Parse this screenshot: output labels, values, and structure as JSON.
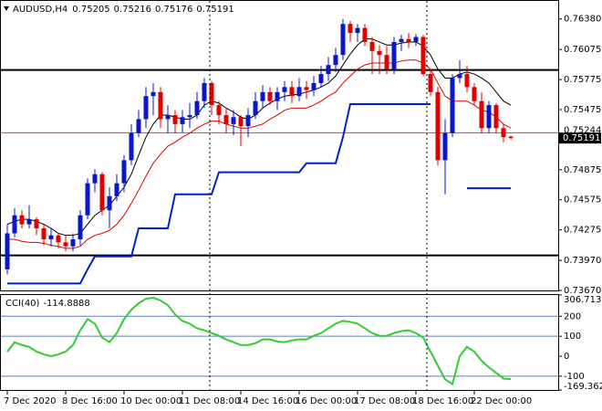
{
  "chart_data": {
    "type": "candlestick",
    "symbol": "AUDUSD,H4",
    "up_color": "#0a17c9",
    "down_color": "#e00000",
    "categories": [
      "7 Dec 2020",
      null,
      null,
      null,
      null,
      null,
      null,
      null,
      "8 Dec 16:00",
      null,
      null,
      null,
      null,
      null,
      null,
      null,
      "10 Dec 00:00",
      null,
      null,
      null,
      null,
      null,
      null,
      null,
      "11 Dec 08:00",
      null,
      null,
      null,
      null,
      null,
      null,
      null,
      "14 Dec 16:00",
      null,
      null,
      null,
      null,
      null,
      null,
      null,
      "16 Dec 00:00",
      null,
      null,
      null,
      null,
      null,
      null,
      null,
      "17 Dec 08:00",
      null,
      null,
      null,
      null,
      null,
      null,
      null,
      "18 Dec 16:00",
      null,
      null,
      null,
      null,
      null,
      null,
      null,
      "22 Dec 00:00",
      null,
      null,
      null,
      null,
      null
    ],
    "open": [
      0.7388,
      0.7424,
      0.7442,
      0.7433,
      0.7438,
      0.7429,
      0.7418,
      0.7422,
      0.7415,
      0.7411,
      0.7418,
      0.7442,
      0.7474,
      0.7483,
      0.7447,
      0.7461,
      0.7474,
      0.7497,
      0.7524,
      0.7538,
      0.7561,
      0.7565,
      0.7538,
      0.7542,
      0.7533,
      0.754,
      0.7542,
      0.7556,
      0.7574,
      0.7552,
      0.7542,
      0.7533,
      0.754,
      0.7531,
      0.7542,
      0.7556,
      0.7565,
      0.7556,
      0.7565,
      0.757,
      0.7561,
      0.757,
      0.7567,
      0.7574,
      0.7583,
      0.7592,
      0.7602,
      0.7633,
      0.7624,
      0.7629,
      0.7615,
      0.7606,
      0.7602,
      0.7588,
      0.7615,
      0.7618,
      0.7615,
      0.762,
      0.7583,
      0.7565,
      0.7497,
      0.7524,
      0.7579,
      0.7583,
      0.757,
      0.7556,
      0.7529,
      0.7552,
      0.7529,
      0.75205
    ],
    "high": [
      0.7433,
      0.7449,
      0.7447,
      0.7452,
      0.744,
      0.7433,
      0.7429,
      0.7424,
      0.7422,
      0.7424,
      0.7447,
      0.7479,
      0.7488,
      0.7485,
      0.747,
      0.7483,
      0.7502,
      0.7533,
      0.7547,
      0.757,
      0.7574,
      0.757,
      0.7552,
      0.7547,
      0.7547,
      0.7554,
      0.7565,
      0.7579,
      0.7576,
      0.7556,
      0.7549,
      0.7547,
      0.7542,
      0.7549,
      0.7565,
      0.7572,
      0.757,
      0.757,
      0.7576,
      0.7576,
      0.7579,
      0.7576,
      0.7581,
      0.7591,
      0.76,
      0.7609,
      0.7638,
      0.7636,
      0.7633,
      0.7633,
      0.762,
      0.7612,
      0.7611,
      0.762,
      0.7622,
      0.7624,
      0.7623,
      0.7622,
      0.7588,
      0.757,
      0.7538,
      0.7583,
      0.7597,
      0.7591,
      0.7574,
      0.7565,
      0.7556,
      0.7554,
      0.7533,
      0.75216
    ],
    "low": [
      0.7383,
      0.742,
      0.7429,
      0.7429,
      0.7422,
      0.7412,
      0.7411,
      0.7409,
      0.7406,
      0.7406,
      0.7412,
      0.7438,
      0.7465,
      0.7442,
      0.7429,
      0.7456,
      0.7465,
      0.7492,
      0.752,
      0.7529,
      0.7542,
      0.7529,
      0.7524,
      0.7524,
      0.7524,
      0.7529,
      0.7538,
      0.7549,
      0.7542,
      0.7533,
      0.7524,
      0.7522,
      0.7511,
      0.752,
      0.7538,
      0.7549,
      0.7552,
      0.7547,
      0.7556,
      0.7554,
      0.7556,
      0.7558,
      0.7561,
      0.757,
      0.7576,
      0.7585,
      0.7597,
      0.7615,
      0.7615,
      0.7611,
      0.7583,
      0.7583,
      0.7583,
      0.7583,
      0.7606,
      0.7609,
      0.7611,
      0.7581,
      0.7561,
      0.7492,
      0.7463,
      0.752,
      0.7574,
      0.7565,
      0.7552,
      0.7524,
      0.7524,
      0.7524,
      0.7515,
      0.75176
    ],
    "close": [
      0.7424,
      0.7442,
      0.7433,
      0.7438,
      0.7429,
      0.7418,
      0.7422,
      0.7415,
      0.7411,
      0.7418,
      0.7442,
      0.7474,
      0.7483,
      0.7447,
      0.7461,
      0.7474,
      0.7497,
      0.7524,
      0.7538,
      0.7561,
      0.7565,
      0.7538,
      0.7542,
      0.7533,
      0.754,
      0.7542,
      0.7556,
      0.7574,
      0.7552,
      0.7542,
      0.7533,
      0.754,
      0.7531,
      0.7542,
      0.7556,
      0.7565,
      0.7556,
      0.7565,
      0.757,
      0.7561,
      0.757,
      0.7567,
      0.7574,
      0.7583,
      0.7592,
      0.7602,
      0.7633,
      0.7624,
      0.7629,
      0.7615,
      0.7606,
      0.7602,
      0.7588,
      0.7615,
      0.7618,
      0.7615,
      0.762,
      0.7583,
      0.7565,
      0.7497,
      0.7524,
      0.7579,
      0.7583,
      0.757,
      0.7556,
      0.7529,
      0.7552,
      0.7529,
      0.752,
      0.75191
    ],
    "overlays": [
      {
        "color": "#000000",
        "values": [
          0.7433,
          0.7436,
          0.7438,
          0.7438,
          0.7436,
          0.7433,
          0.7429,
          0.7424,
          0.7422,
          0.7422,
          0.7424,
          0.7433,
          0.7442,
          0.7447,
          0.7452,
          0.7461,
          0.747,
          0.7483,
          0.7502,
          0.752,
          0.7533,
          0.7542,
          0.7542,
          0.754,
          0.7538,
          0.7538,
          0.7542,
          0.7552,
          0.7556,
          0.7554,
          0.7549,
          0.7545,
          0.754,
          0.7538,
          0.7542,
          0.7549,
          0.7554,
          0.7558,
          0.7561,
          0.7562,
          0.7563,
          0.7565,
          0.7567,
          0.757,
          0.7574,
          0.7581,
          0.7592,
          0.7603,
          0.7612,
          0.7618,
          0.7618,
          0.7615,
          0.7612,
          0.7612,
          0.7614,
          0.7615,
          0.7615,
          0.7611,
          0.7602,
          0.7588,
          0.7579,
          0.7579,
          0.7583,
          0.7585,
          0.7583,
          0.7579,
          0.7574,
          0.7565,
          0.7556,
          0.7552
        ]
      },
      {
        "color": "#e00000",
        "values": [
          0.7418,
          0.7418,
          0.7416,
          0.7415,
          0.7415,
          0.7414,
          0.7412,
          0.7411,
          0.7409,
          0.7409,
          0.7411,
          0.7418,
          0.7422,
          0.7424,
          0.7427,
          0.7433,
          0.7442,
          0.7454,
          0.7467,
          0.7481,
          0.7494,
          0.7503,
          0.7511,
          0.7515,
          0.752,
          0.7524,
          0.7529,
          0.7533,
          0.7536,
          0.7536,
          0.7533,
          0.7531,
          0.7529,
          0.7529,
          0.7531,
          0.7533,
          0.7538,
          0.7542,
          0.7547,
          0.7549,
          0.7549,
          0.7549,
          0.7552,
          0.7556,
          0.7561,
          0.7565,
          0.7574,
          0.7581,
          0.7588,
          0.7592,
          0.7594,
          0.7594,
          0.7594,
          0.7594,
          0.7596,
          0.7597,
          0.7597,
          0.7594,
          0.7588,
          0.7574,
          0.7561,
          0.7556,
          0.7556,
          0.7556,
          0.7552,
          0.7547,
          0.7545,
          0.754,
          0.7533,
          0.7529
        ]
      },
      {
        "color": "#0022cc",
        "values": [
          0.7374,
          0.7374,
          0.7374,
          0.7374,
          0.7374,
          0.7374,
          0.7374,
          0.7374,
          0.7374,
          0.7374,
          0.7374,
          0.7388,
          0.7401,
          0.7401,
          0.7401,
          0.7401,
          0.7401,
          0.7401,
          0.7429,
          0.7429,
          0.7429,
          0.7429,
          0.7429,
          0.7463,
          0.7463,
          0.7463,
          0.7463,
          0.7463,
          0.7463,
          0.7485,
          0.7485,
          0.7485,
          0.7485,
          0.7485,
          0.7485,
          0.7485,
          0.7485,
          0.7485,
          0.7485,
          0.7485,
          0.7485,
          0.7494,
          0.7494,
          0.7494,
          0.7494,
          0.7494,
          0.752,
          0.7553,
          0.7553,
          0.7553,
          0.7553,
          0.7553,
          0.7553,
          0.7553,
          0.7553,
          0.7553,
          0.7553,
          0.7553,
          0.7553,
          null,
          null,
          null,
          null,
          0.7469,
          0.7469,
          0.7469,
          0.7469,
          0.7469,
          0.7469,
          0.7469
        ]
      }
    ],
    "levels": [
      0.7587,
      0.7402
    ],
    "ask": 0.75244,
    "ylim": [
      0.7367,
      0.7656
    ],
    "yticks": [
      {
        "value": 0.7638,
        "label": "0.76380"
      },
      0.76075,
      0.75775,
      0.75475,
      0.74875,
      0.74575,
      0.74275,
      {
        "value": 0.7397,
        "label": "0.73970"
      },
      {
        "value": 0.7367,
        "label": "0.73670"
      }
    ],
    "cci": {
      "title": "CCI(40)",
      "color": "#33cc33",
      "level_color": "#5a7fb8",
      "values": [
        23,
        70,
        56,
        47,
        23,
        9,
        0,
        9,
        23,
        56,
        130,
        186,
        163,
        93,
        70,
        116,
        186,
        233,
        265,
        288,
        293,
        279,
        256,
        209,
        177,
        163,
        140,
        130,
        116,
        102,
        84,
        70,
        56,
        56,
        65,
        84,
        84,
        74,
        70,
        79,
        84,
        84,
        102,
        116,
        140,
        163,
        177,
        172,
        163,
        140,
        116,
        102,
        102,
        116,
        126,
        130,
        116,
        93,
        23,
        -47,
        -116,
        -140,
        0,
        47,
        23,
        -23,
        -56,
        -84,
        -112,
        -114.8888
      ],
      "ylim": [
        -169.3626,
        306.713
      ],
      "yticks": [
        306.713,
        200,
        100,
        0,
        -100,
        -169.3626
      ],
      "levels": [
        200,
        100,
        -100
      ]
    }
  }
}
